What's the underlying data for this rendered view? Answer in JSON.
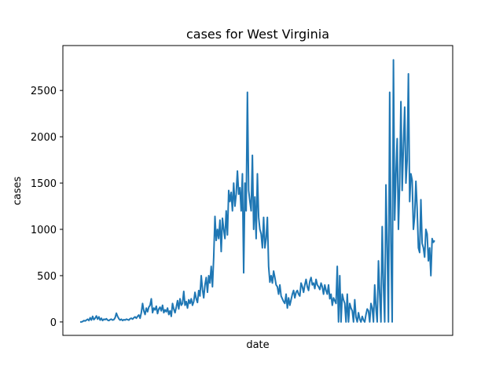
{
  "chart_data": {
    "type": "line",
    "title": "cases for West Virginia",
    "xlabel": "date",
    "ylabel": "cases",
    "ylim": [
      -145,
      2985
    ],
    "yticks": [
      0,
      500,
      1000,
      1500,
      2000,
      2500
    ],
    "x_tick_labels": [],
    "grid": false,
    "legend": "none",
    "series": [
      {
        "color": "#1f77b4",
        "values": [
          0,
          0,
          5,
          15,
          10,
          20,
          30,
          15,
          45,
          20,
          60,
          25,
          40,
          65,
          30,
          55,
          20,
          40,
          15,
          30,
          25,
          35,
          20,
          15,
          25,
          30,
          20,
          25,
          45,
          95,
          60,
          35,
          20,
          30,
          15,
          25,
          20,
          30,
          25,
          20,
          35,
          40,
          30,
          45,
          55,
          40,
          60,
          75,
          40,
          100,
          200,
          120,
          80,
          150,
          110,
          160,
          180,
          250,
          100,
          150,
          130,
          170,
          90,
          140,
          160,
          120,
          180,
          100,
          130,
          110,
          150,
          80,
          120,
          60,
          200,
          140,
          100,
          160,
          230,
          140,
          250,
          180,
          200,
          330,
          180,
          220,
          150,
          240,
          200,
          250,
          180,
          220,
          320,
          250,
          210,
          340,
          280,
          500,
          350,
          260,
          400,
          480,
          320,
          500,
          420,
          600,
          380,
          700,
          1140,
          880,
          1000,
          900,
          1100,
          760,
          1120,
          1000,
          900,
          1200,
          940,
          1420,
          1300,
          1400,
          1200,
          1500,
          1250,
          1380,
          1630,
          1380,
          1450,
          1200,
          1600,
          530,
          1500,
          1200,
          2480,
          1420,
          1300,
          1200,
          1800,
          1000,
          1350,
          900,
          1600,
          1130,
          1000,
          950,
          800,
          1130,
          800,
          900,
          1130,
          600,
          430,
          500,
          420,
          550,
          480,
          400,
          380,
          300,
          400,
          280,
          250,
          220,
          200,
          300,
          150,
          260,
          180,
          240,
          300,
          340,
          260,
          320,
          340,
          300,
          280,
          420,
          380,
          320,
          400,
          460,
          380,
          340,
          440,
          480,
          400,
          420,
          360,
          460,
          400,
          380,
          350,
          420,
          380,
          300,
          400,
          340,
          300,
          400,
          250,
          300,
          180,
          260,
          230,
          200,
          600,
          0,
          500,
          0,
          300,
          240,
          200,
          0,
          300,
          0,
          200,
          150,
          120,
          0,
          240,
          50,
          0,
          100,
          30,
          0,
          60,
          20,
          0,
          80,
          140,
          120,
          0,
          200,
          150,
          0,
          400,
          150,
          0,
          660,
          300,
          0,
          1030,
          400,
          0,
          1480,
          800,
          0,
          2480,
          850,
          0,
          2830,
          1100,
          1600,
          1980,
          1000,
          1500,
          2380,
          1420,
          1900,
          2320,
          1500,
          1750,
          2680,
          1300,
          1600,
          1530,
          1000,
          1140,
          1520,
          1220,
          800,
          750,
          1320,
          850,
          800,
          700,
          1000,
          950,
          660,
          800,
          500,
          900,
          860,
          880
        ]
      }
    ]
  }
}
